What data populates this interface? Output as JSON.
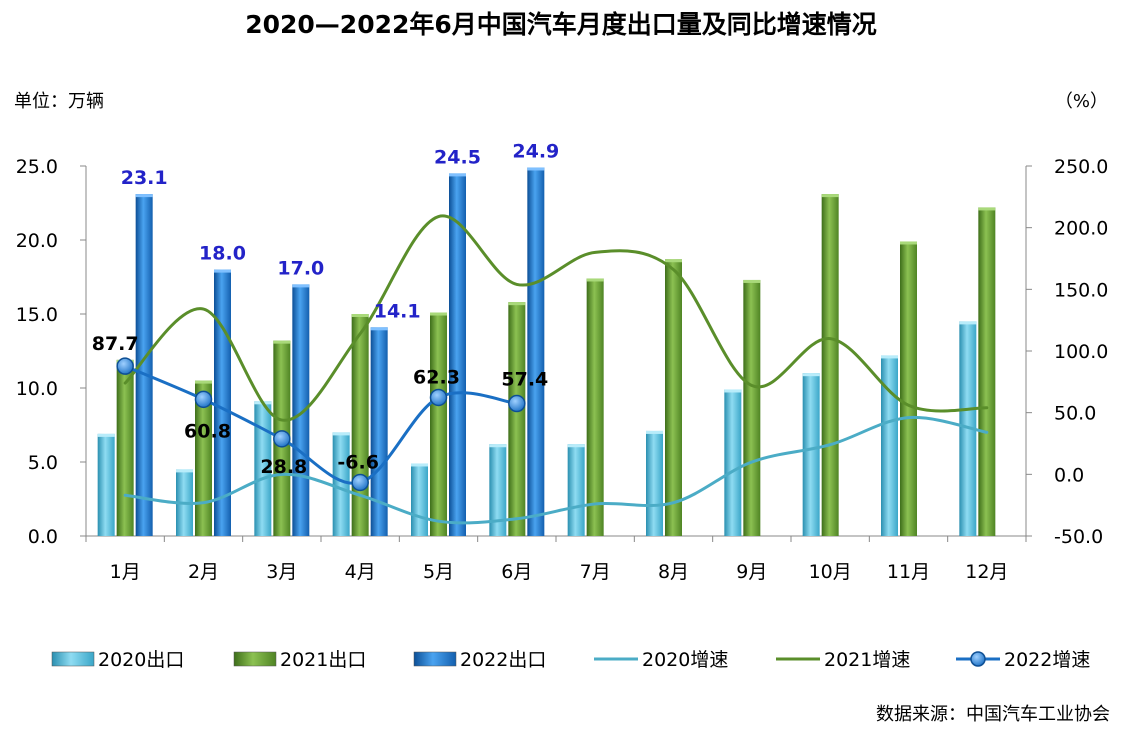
{
  "chart_data": {
    "type": "bar+line",
    "title": "2020—2022年6月中国汽车月度出口量及同比增速情况",
    "left_unit": "单位：万辆",
    "right_unit": "（%）",
    "source": "数据来源：中国汽车工业协会",
    "categories": [
      "1月",
      "2月",
      "3月",
      "4月",
      "5月",
      "6月",
      "7月",
      "8月",
      "9月",
      "10月",
      "11月",
      "12月"
    ],
    "y_left": {
      "min": 0,
      "max": 25,
      "ticks": [
        "0.0",
        "5.0",
        "10.0",
        "15.0",
        "20.0",
        "25.0"
      ]
    },
    "y_right": {
      "min": -50,
      "max": 250,
      "ticks": [
        "-50.0",
        "0.0",
        "50.0",
        "100.0",
        "150.0",
        "200.0",
        "250.0"
      ]
    },
    "bar_series": [
      {
        "name": "2020出口",
        "color": "#4fc1e0",
        "values": [
          6.9,
          4.5,
          9.1,
          7.0,
          4.9,
          6.2,
          6.2,
          7.1,
          9.9,
          11.0,
          12.2,
          14.5
        ]
      },
      {
        "name": "2021出口",
        "color": "#5a9a2a",
        "values": [
          11.9,
          10.5,
          13.2,
          15.0,
          15.1,
          15.8,
          17.4,
          18.7,
          17.3,
          23.1,
          19.9,
          22.2
        ]
      },
      {
        "name": "2022出口",
        "color": "#1a6fc4",
        "values": [
          23.1,
          18.0,
          17.0,
          14.1,
          24.5,
          24.9,
          null,
          null,
          null,
          null,
          null,
          null
        ],
        "labels": [
          "23.1",
          "18.0",
          "17.0",
          "14.1",
          "24.5",
          "24.9"
        ]
      }
    ],
    "line_series": [
      {
        "name": "2020增速",
        "color": "#4bacc6",
        "values": [
          -17,
          -23,
          0,
          -17,
          -38,
          -36,
          -24,
          -23,
          10,
          24,
          46,
          34
        ]
      },
      {
        "name": "2021增速",
        "color": "#5a8e2a",
        "values": [
          74,
          134,
          44,
          114,
          209,
          154,
          180,
          166,
          72,
          110,
          56,
          54
        ]
      },
      {
        "name": "2022增速",
        "color": "#1a6fc4",
        "values": [
          87.7,
          60.8,
          28.8,
          -6.6,
          62.3,
          57.4,
          null,
          null,
          null,
          null,
          null,
          null
        ],
        "labels": [
          "87.7",
          "60.8",
          "28.8",
          "-6.6",
          "62.3",
          "57.4"
        ]
      }
    ],
    "legend": [
      "2020出口",
      "2021出口",
      "2022出口",
      "2020增速",
      "2021增速",
      "2022增速"
    ],
    "legend_position": "bottom"
  }
}
